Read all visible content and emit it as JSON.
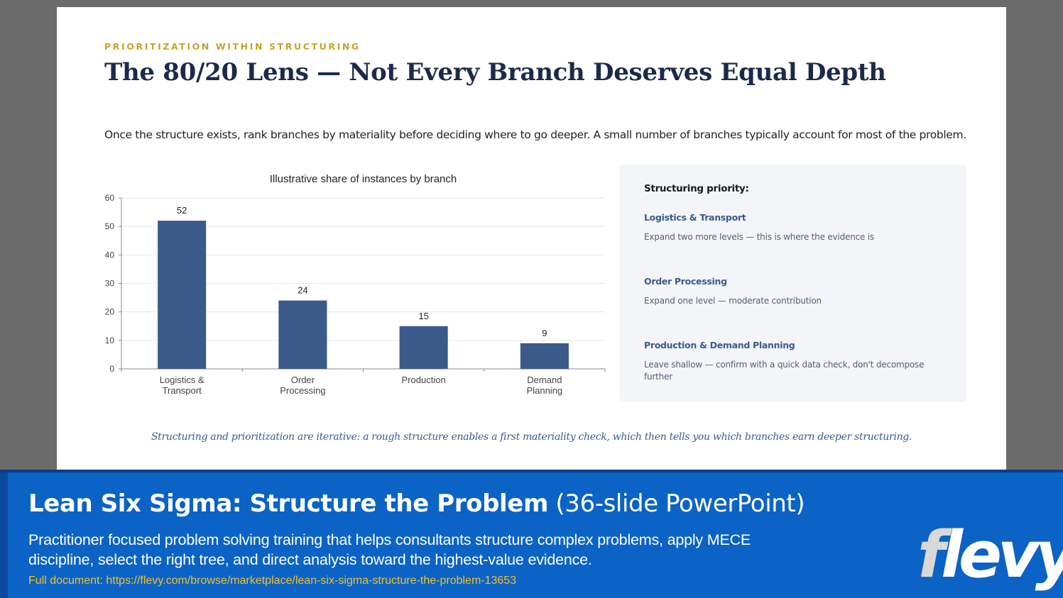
{
  "slide": {
    "eyebrow": "PRIORITIZATION WITHIN STRUCTURING",
    "title": "The 80/20 Lens — Not Every Branch Deserves Equal Depth",
    "intro": "Once the structure exists, rank branches by materiality before deciding where to go deeper. A small number of branches typically account for most of the problem.",
    "note": "Structuring and prioritization are iterative: a rough structure enables a first materiality check, which then tells you which branches earn deeper structuring."
  },
  "chart_data": {
    "type": "bar",
    "title": "Illustrative share of instances by branch",
    "categories": [
      [
        "Logistics &",
        "Transport"
      ],
      [
        "Order",
        "Processing"
      ],
      [
        "Production"
      ],
      [
        "Demand",
        "Planning"
      ]
    ],
    "values": [
      52,
      24,
      15,
      9
    ],
    "ylim": [
      0,
      60
    ],
    "yticks": [
      0,
      10,
      20,
      30,
      40,
      50,
      60
    ],
    "grid": true,
    "bar_color": "#3a5a8a"
  },
  "panel": {
    "heading": "Structuring priority:",
    "items": [
      {
        "title": "Logistics & Transport",
        "desc": "Expand two more levels — this is where the evidence is"
      },
      {
        "title": "Order Processing",
        "desc": "Expand one level — moderate contribution"
      },
      {
        "title": "Production & Demand Planning",
        "desc": "Leave shallow — confirm with a quick data check, don't decompose further"
      }
    ]
  },
  "footer": {
    "title_bold": "Lean Six Sigma: Structure the Problem",
    "title_light": "(36-slide PowerPoint)",
    "desc": "Practitioner focused problem solving training that helps consultants structure complex problems, apply MECE discipline, select the right tree, and direct analysis toward the highest-value evidence.",
    "link": "Full document: https://flevy.com/browse/marketplace/lean-six-sigma-structure-the-problem-13653",
    "logo_first": "f",
    "logo_rest": "levy"
  }
}
